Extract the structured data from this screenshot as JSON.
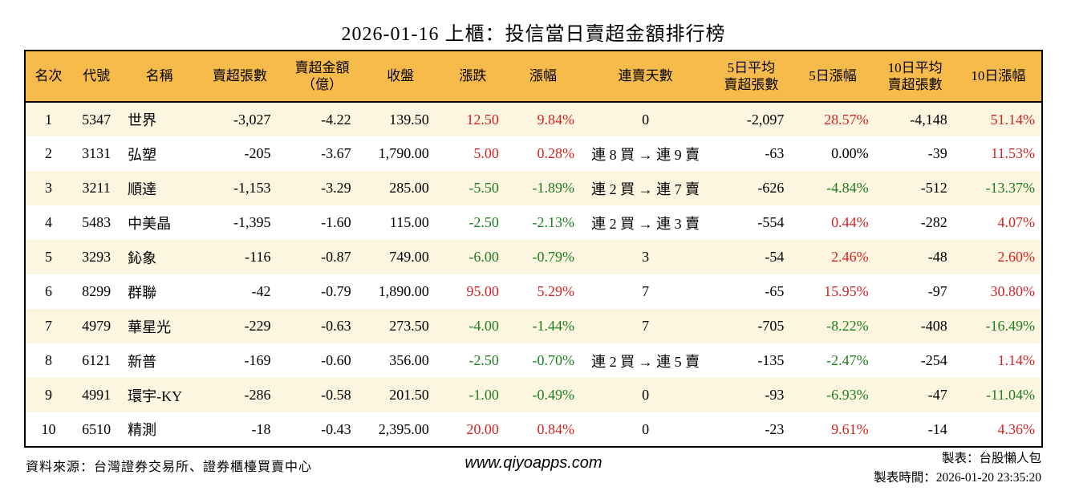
{
  "title": "2026-01-16 上櫃：投信當日賣超金額排行榜",
  "colors": {
    "header_bg": "#F7BB4C",
    "row_odd_bg": "#FCF5E0",
    "row_even_bg": "#FFFFFF",
    "up_red": "#D32424",
    "down_green": "#1E7E1E",
    "border_black": "#000000"
  },
  "table": {
    "columns": [
      {
        "id": "rank",
        "label": "名次",
        "label_lines": [
          "名次"
        ]
      },
      {
        "id": "code",
        "label": "代號",
        "label_lines": [
          "代號"
        ]
      },
      {
        "id": "name",
        "label": "名稱",
        "label_lines": [
          "名稱"
        ]
      },
      {
        "id": "sell_volume",
        "label": "賣超張數",
        "label_lines": [
          "賣超張數"
        ]
      },
      {
        "id": "sell_amount",
        "label": "賣超金額（億）",
        "label_lines": [
          "賣超金額",
          "（億）"
        ]
      },
      {
        "id": "close",
        "label": "收盤",
        "label_lines": [
          "收盤"
        ]
      },
      {
        "id": "change",
        "label": "漲跌",
        "label_lines": [
          "漲跌"
        ],
        "color_key": "change_color"
      },
      {
        "id": "change_pct",
        "label": "漲幅",
        "label_lines": [
          "漲幅"
        ],
        "color_key": "change_pct_color"
      },
      {
        "id": "streak",
        "label": "連賣天數",
        "label_lines": [
          "連賣天數"
        ]
      },
      {
        "id": "avg5",
        "label": "5日平均賣超張數",
        "label_lines": [
          "5日平均",
          "賣超張數"
        ]
      },
      {
        "id": "pct5",
        "label": "5日漲幅",
        "label_lines": [
          "5日漲幅"
        ],
        "color_key": "pct5_color"
      },
      {
        "id": "avg10",
        "label": "10日平均賣超張數",
        "label_lines": [
          "10日平均",
          "賣超張數"
        ]
      },
      {
        "id": "pct10",
        "label": "10日漲幅",
        "label_lines": [
          "10日漲幅"
        ],
        "color_key": "pct10_color"
      }
    ],
    "rows": [
      {
        "rank": "1",
        "code": "5347",
        "name": "世界",
        "sell_volume": "-3,027",
        "sell_amount": "-4.22",
        "close": "139.50",
        "change": "12.50",
        "change_color": "red",
        "change_pct": "9.84%",
        "change_pct_color": "red",
        "streak": "0",
        "avg5": "-2,097",
        "pct5": "28.57%",
        "pct5_color": "red",
        "avg10": "-4,148",
        "pct10": "51.14%",
        "pct10_color": "red"
      },
      {
        "rank": "2",
        "code": "3131",
        "name": "弘塑",
        "sell_volume": "-205",
        "sell_amount": "-3.67",
        "close": "1,790.00",
        "change": "5.00",
        "change_color": "red",
        "change_pct": "0.28%",
        "change_pct_color": "red",
        "streak": "連 8 買 → 連 9 賣",
        "avg5": "-63",
        "pct5": "0.00%",
        "pct5_color": "black",
        "avg10": "-39",
        "pct10": "11.53%",
        "pct10_color": "red"
      },
      {
        "rank": "3",
        "code": "3211",
        "name": "順達",
        "sell_volume": "-1,153",
        "sell_amount": "-3.29",
        "close": "285.00",
        "change": "-5.50",
        "change_color": "green",
        "change_pct": "-1.89%",
        "change_pct_color": "green",
        "streak": "連 2 買 → 連 7 賣",
        "avg5": "-626",
        "pct5": "-4.84%",
        "pct5_color": "green",
        "avg10": "-512",
        "pct10": "-13.37%",
        "pct10_color": "green"
      },
      {
        "rank": "4",
        "code": "5483",
        "name": "中美晶",
        "sell_volume": "-1,395",
        "sell_amount": "-1.60",
        "close": "115.00",
        "change": "-2.50",
        "change_color": "green",
        "change_pct": "-2.13%",
        "change_pct_color": "green",
        "streak": "連 2 買 → 連 3 賣",
        "avg5": "-554",
        "pct5": "0.44%",
        "pct5_color": "red",
        "avg10": "-282",
        "pct10": "4.07%",
        "pct10_color": "red"
      },
      {
        "rank": "5",
        "code": "3293",
        "name": "鈊象",
        "sell_volume": "-116",
        "sell_amount": "-0.87",
        "close": "749.00",
        "change": "-6.00",
        "change_color": "green",
        "change_pct": "-0.79%",
        "change_pct_color": "green",
        "streak": "3",
        "avg5": "-54",
        "pct5": "2.46%",
        "pct5_color": "red",
        "avg10": "-48",
        "pct10": "2.60%",
        "pct10_color": "red"
      },
      {
        "rank": "6",
        "code": "8299",
        "name": "群聯",
        "sell_volume": "-42",
        "sell_amount": "-0.79",
        "close": "1,890.00",
        "change": "95.00",
        "change_color": "red",
        "change_pct": "5.29%",
        "change_pct_color": "red",
        "streak": "7",
        "avg5": "-65",
        "pct5": "15.95%",
        "pct5_color": "red",
        "avg10": "-97",
        "pct10": "30.80%",
        "pct10_color": "red"
      },
      {
        "rank": "7",
        "code": "4979",
        "name": "華星光",
        "sell_volume": "-229",
        "sell_amount": "-0.63",
        "close": "273.50",
        "change": "-4.00",
        "change_color": "green",
        "change_pct": "-1.44%",
        "change_pct_color": "green",
        "streak": "7",
        "avg5": "-705",
        "pct5": "-8.22%",
        "pct5_color": "green",
        "avg10": "-408",
        "pct10": "-16.49%",
        "pct10_color": "green"
      },
      {
        "rank": "8",
        "code": "6121",
        "name": "新普",
        "sell_volume": "-169",
        "sell_amount": "-0.60",
        "close": "356.00",
        "change": "-2.50",
        "change_color": "green",
        "change_pct": "-0.70%",
        "change_pct_color": "green",
        "streak": "連 2 買 → 連 5 賣",
        "avg5": "-135",
        "pct5": "-2.47%",
        "pct5_color": "green",
        "avg10": "-254",
        "pct10": "1.14%",
        "pct10_color": "red"
      },
      {
        "rank": "9",
        "code": "4991",
        "name": "環宇-KY",
        "sell_volume": "-286",
        "sell_amount": "-0.58",
        "close": "201.50",
        "change": "-1.00",
        "change_color": "green",
        "change_pct": "-0.49%",
        "change_pct_color": "green",
        "streak": "0",
        "avg5": "-93",
        "pct5": "-6.93%",
        "pct5_color": "green",
        "avg10": "-47",
        "pct10": "-11.04%",
        "pct10_color": "green"
      },
      {
        "rank": "10",
        "code": "6510",
        "name": "精測",
        "sell_volume": "-18",
        "sell_amount": "-0.43",
        "close": "2,395.00",
        "change": "20.00",
        "change_color": "red",
        "change_pct": "0.84%",
        "change_pct_color": "red",
        "streak": "0",
        "avg5": "-23",
        "pct5": "9.61%",
        "pct5_color": "red",
        "avg10": "-14",
        "pct10": "4.36%",
        "pct10_color": "red"
      }
    ]
  },
  "footer": {
    "source": "資料來源：台灣證券交易所、證券櫃檯買賣中心",
    "website": "www.qiyoapps.com",
    "maker": "製表：台股懶人包",
    "made_time": "製表時間：2026-01-20 23:35:20"
  }
}
